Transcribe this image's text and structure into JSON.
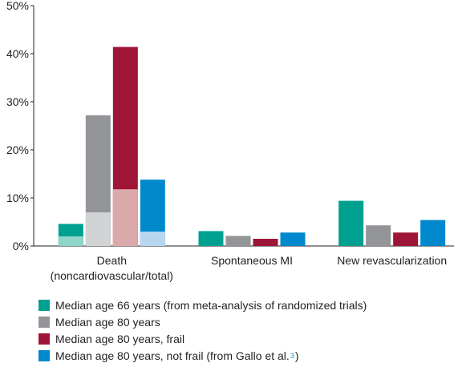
{
  "chart_data": {
    "type": "bar",
    "stacked_inner_segments": true,
    "ylim": [
      0,
      50
    ],
    "yticks": [
      {
        "value": 0,
        "label": "0%"
      },
      {
        "value": 10,
        "label": "10%"
      },
      {
        "value": 20,
        "label": "20%"
      },
      {
        "value": 30,
        "label": "30%"
      },
      {
        "value": 40,
        "label": "40%"
      },
      {
        "value": 50,
        "label": "50%"
      }
    ],
    "categories": [
      {
        "line1": "Death",
        "line2": "(noncardiovascular/total)"
      },
      {
        "line1": "Spontaneous MI",
        "line2": ""
      },
      {
        "line1": "New revascularization",
        "line2": ""
      }
    ],
    "series": [
      {
        "name": "Median age 66 years (from meta-analysis of randomized trials)",
        "sup": "",
        "suffix": "",
        "color": "#00a091",
        "inner_color": "#8fd5c9",
        "values": [
          4.6,
          3.1,
          9.4
        ],
        "inner_values": [
          2.0,
          null,
          null
        ]
      },
      {
        "name": "Median age 80 years",
        "sup": "",
        "suffix": "",
        "color": "#939598",
        "inner_color": "#d1d3d4",
        "values": [
          27.2,
          2.1,
          4.3
        ],
        "inner_values": [
          7.0,
          null,
          null
        ]
      },
      {
        "name": "Median age 80 years, frail",
        "sup": "",
        "suffix": "",
        "color": "#9e1537",
        "inner_color": "#dba9a9",
        "values": [
          41.4,
          1.5,
          2.8
        ],
        "inner_values": [
          11.8,
          null,
          null
        ]
      },
      {
        "name": "Median age 80 years, not frail (from Gallo et al.",
        "sup": "3",
        "suffix": ")",
        "color": "#0088cc",
        "inner_color": "#b7d7f0",
        "values": [
          13.8,
          2.8,
          5.4
        ],
        "inner_values": [
          3.0,
          null,
          null
        ]
      }
    ]
  }
}
